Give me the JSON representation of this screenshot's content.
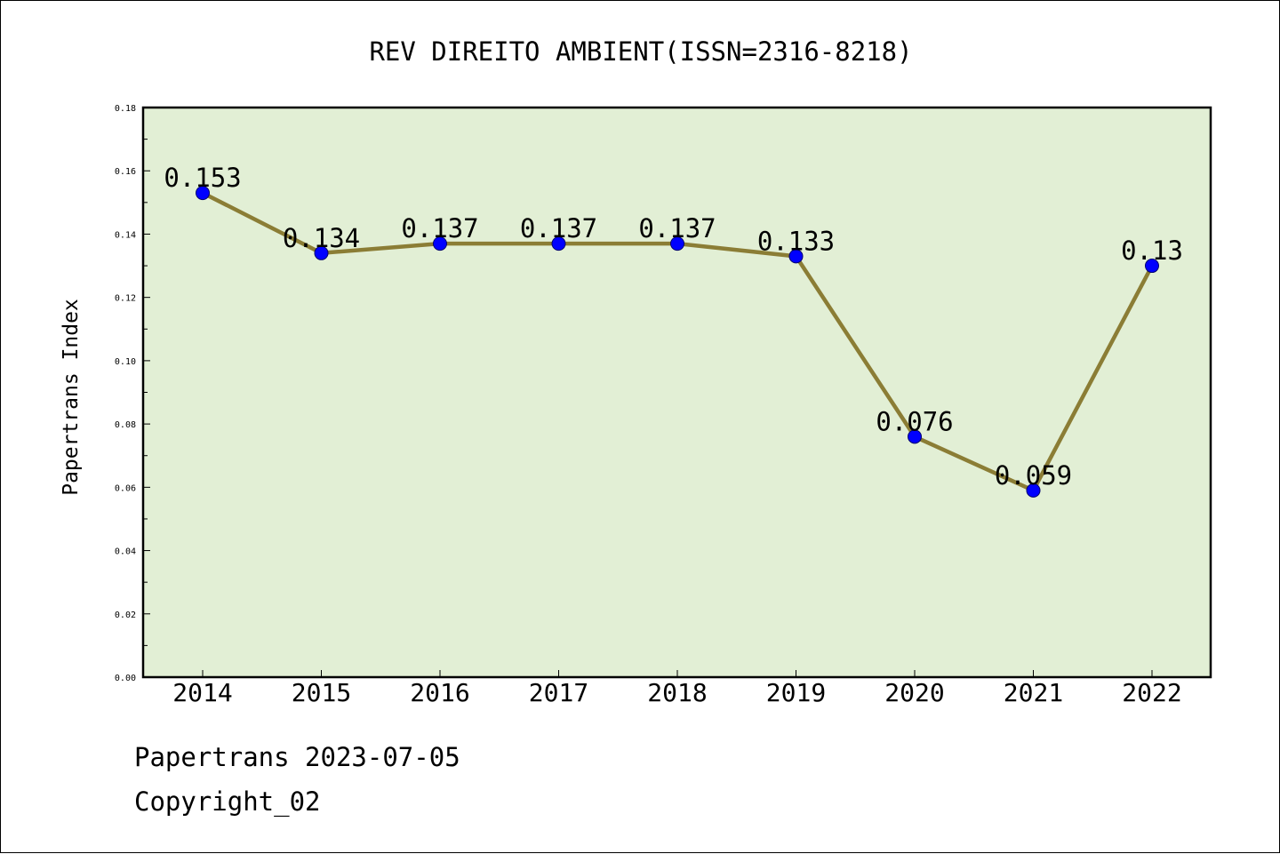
{
  "colors": {
    "plot_background": "#e2efd5",
    "line": "#8b7d35",
    "marker": "#0000ff",
    "axis": "#000000"
  },
  "chart_data": {
    "type": "line",
    "title": "REV DIREITO AMBIENT(ISSN=2316-8218)",
    "xlabel": "",
    "ylabel": "Papertrans Index",
    "categories": [
      "2014",
      "2015",
      "2016",
      "2017",
      "2018",
      "2019",
      "2020",
      "2021",
      "2022"
    ],
    "series": [
      {
        "values": [
          0.153,
          0.134,
          0.137,
          0.137,
          0.137,
          0.133,
          0.076,
          0.059,
          0.13
        ],
        "data_labels": [
          "0.153",
          "0.134",
          "0.137",
          "0.137",
          "0.137",
          "0.133",
          "0.076",
          "0.059",
          "0.13"
        ]
      }
    ],
    "ylim": [
      0,
      0.18
    ],
    "yticks": [
      "0.00",
      "0.02",
      "0.04",
      "0.06",
      "0.08",
      "0.10",
      "0.12",
      "0.14",
      "0.16",
      "0.18"
    ],
    "grid": false,
    "legend": "none"
  },
  "footer": {
    "line1": "Papertrans 2023-07-05",
    "line2": "Copyright_02"
  }
}
